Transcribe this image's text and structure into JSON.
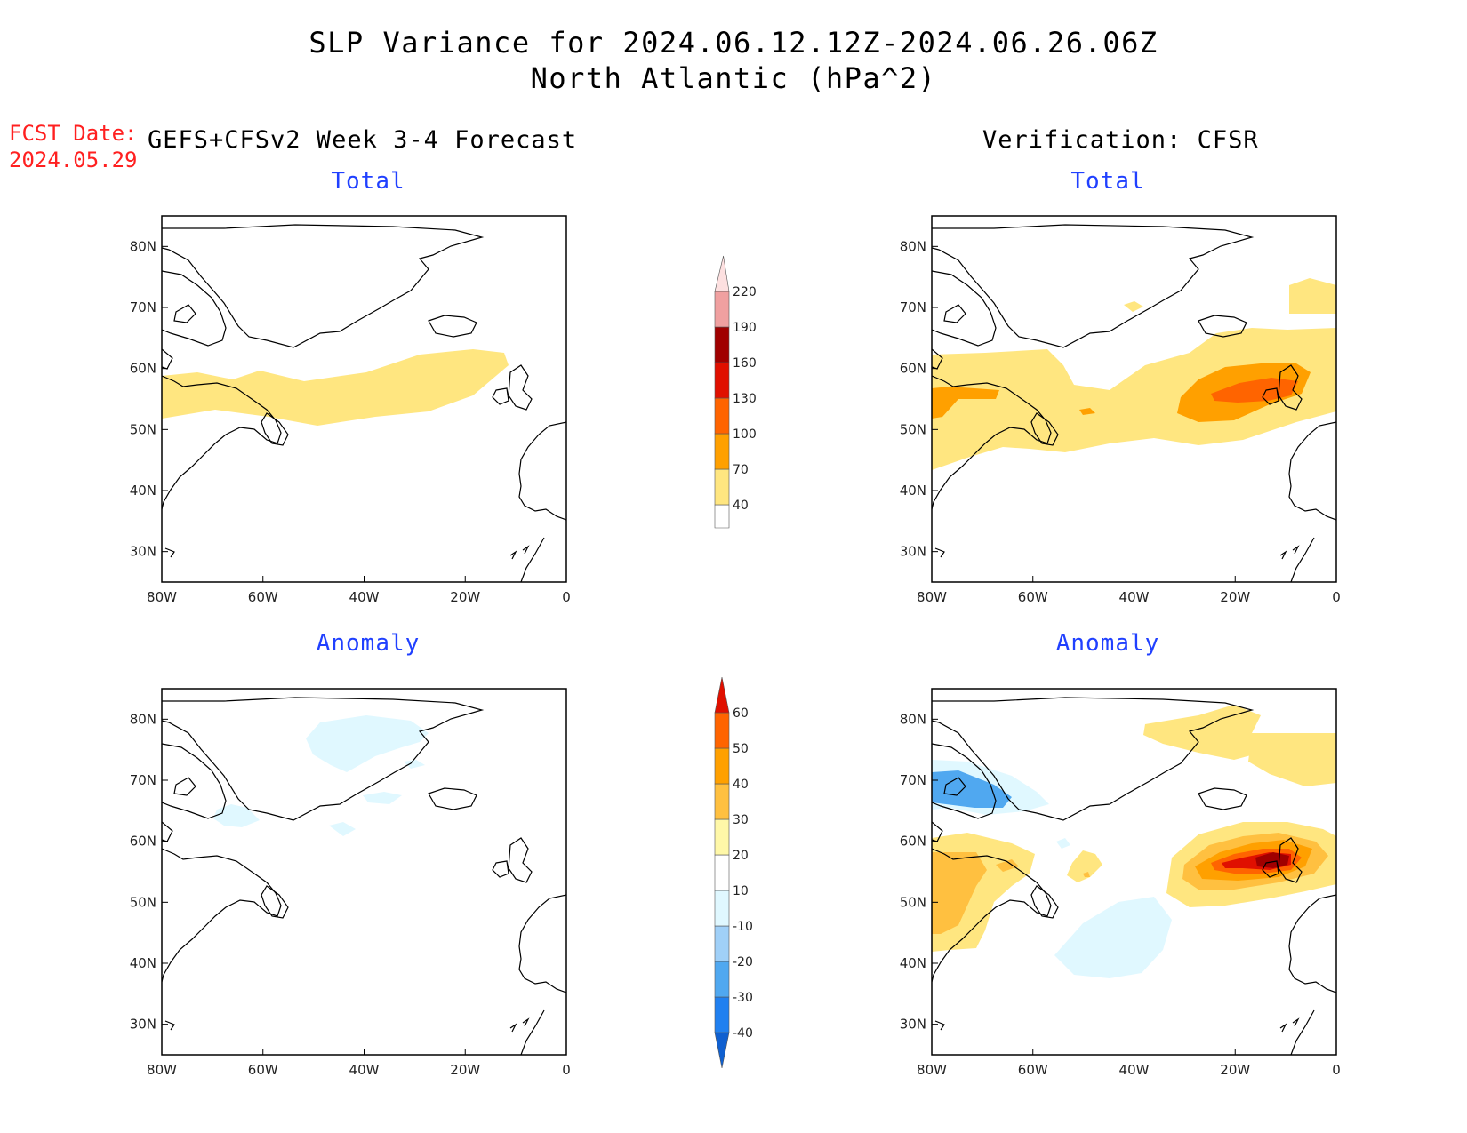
{
  "title": {
    "line1": "SLP Variance for 2024.06.12.12Z-2024.06.26.06Z",
    "line2": "North Atlantic (hPa^2)"
  },
  "fcst": {
    "label": "FCST Date:",
    "date": "2024.05.29"
  },
  "columns": {
    "left": "GEFS+CFSv2 Week 3-4 Forecast",
    "right": "Verification: CFSR"
  },
  "panels": [
    {
      "id": "fcst-total",
      "title": "Total"
    },
    {
      "id": "verif-total",
      "title": "Total"
    },
    {
      "id": "fcst-anomaly",
      "title": "Anomaly"
    },
    {
      "id": "verif-anomaly",
      "title": "Anomaly"
    }
  ],
  "chart_data": {
    "type": "heatmap",
    "map_extent": {
      "lon": [
        -80,
        0
      ],
      "lat": [
        25,
        85
      ]
    },
    "x_ticks": [
      "80W",
      "60W",
      "40W",
      "20W",
      "0"
    ],
    "y_ticks": [
      "30N",
      "40N",
      "50N",
      "60N",
      "70N",
      "80N"
    ],
    "colorbars": {
      "total": {
        "levels": [
          "40",
          "70",
          "100",
          "130",
          "160",
          "190",
          "220"
        ],
        "colors": [
          "#ffe680",
          "#ffa000",
          "#ff6400",
          "#e01000",
          "#a00000",
          "#f0a0a0",
          "#fde0e0"
        ]
      },
      "anomaly": {
        "levels": [
          "-40",
          "-30",
          "-20",
          "-10",
          "10",
          "20",
          "30",
          "40",
          "50",
          "60"
        ],
        "colors": [
          "#1060d0",
          "#2080f0",
          "#50a8f0",
          "#a0d0f8",
          "#e0f8ff",
          "#ffffff",
          "#fff8a8",
          "#ffc040",
          "#ffa000",
          "#ff6400",
          "#e01000",
          "#a00000"
        ]
      }
    }
  }
}
